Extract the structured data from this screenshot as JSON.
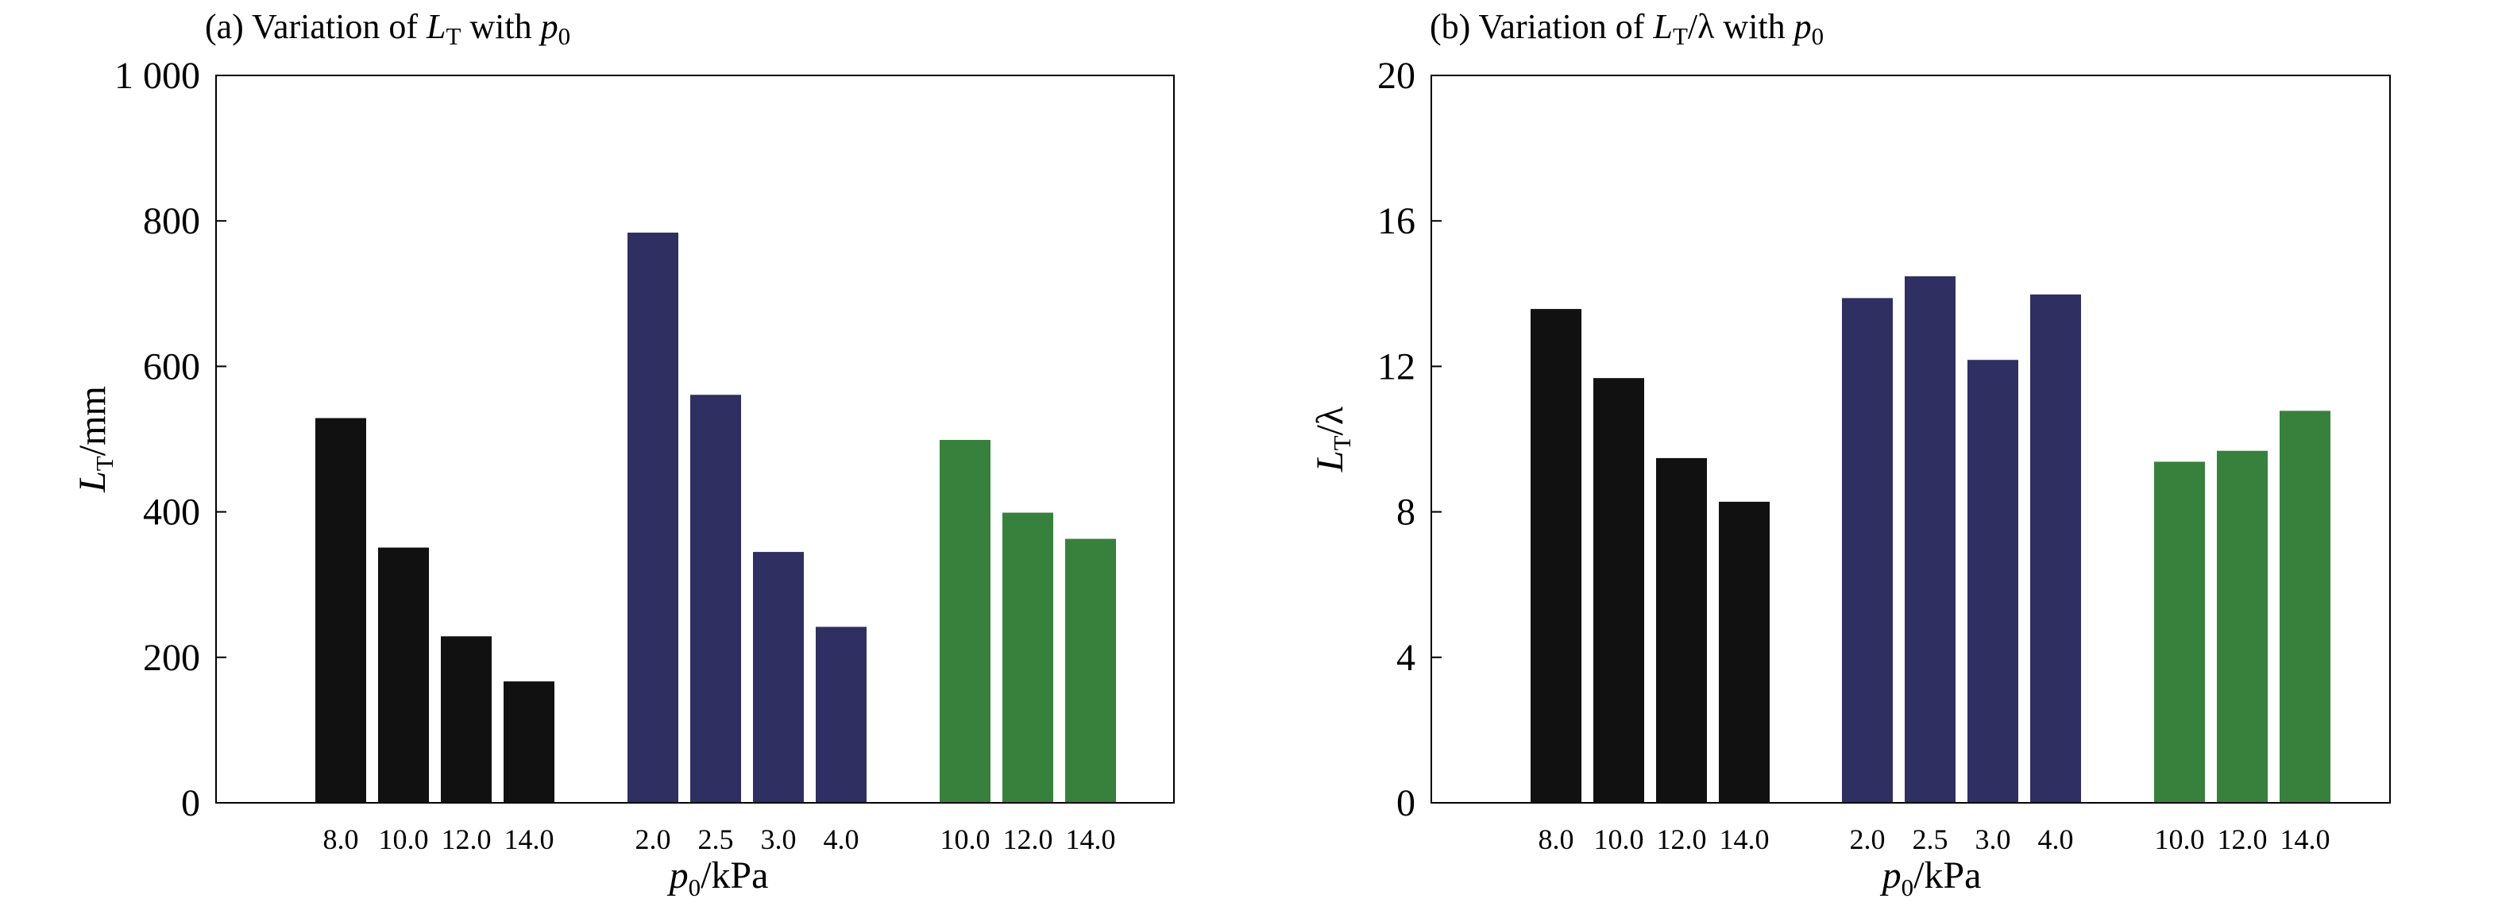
{
  "chart_data": [
    {
      "type": "bar",
      "title": {
        "prefix": "(a) Variation of ",
        "symbol": "L",
        "symbol_sub": "T",
        "middle": " with ",
        "param": "p",
        "param_sub": "0"
      },
      "xlabel": {
        "symbol": "p",
        "symbol_sub": "0",
        "unit": "/kPa"
      },
      "ylabel": {
        "symbol": "L",
        "symbol_sub": "T",
        "unit": "/mm"
      },
      "ylim": [
        0,
        1000
      ],
      "yticks": [
        0,
        200,
        400,
        600,
        800,
        1000
      ],
      "ytick_labels": [
        "0",
        "200",
        "400",
        "600",
        "800",
        "1 000"
      ],
      "grid": false,
      "legend": "none",
      "groups": [
        {
          "color": "#111111",
          "categories": [
            "8.0",
            "10.0",
            "12.0",
            "14.0"
          ],
          "values": [
            530,
            352,
            230,
            168
          ]
        },
        {
          "color": "#2f2f62",
          "categories": [
            "2.0",
            "2.5",
            "3.0",
            "4.0"
          ],
          "values": [
            785,
            562,
            346,
            243
          ]
        },
        {
          "color": "#37813d",
          "categories": [
            "10.0",
            "12.0",
            "14.0"
          ],
          "values": [
            500,
            400,
            364
          ]
        }
      ]
    },
    {
      "type": "bar",
      "title": {
        "prefix": "(b) Variation of ",
        "symbol": "L",
        "symbol_sub": "T",
        "middle": "/λ with ",
        "param": "p",
        "param_sub": "0"
      },
      "xlabel": {
        "symbol": "p",
        "symbol_sub": "0",
        "unit": "/kPa"
      },
      "ylabel": {
        "symbol": "L",
        "symbol_sub": "T",
        "unit": "/λ"
      },
      "ylim": [
        0,
        20
      ],
      "yticks": [
        0,
        4,
        8,
        12,
        16,
        20
      ],
      "ytick_labels": [
        "0",
        "4",
        "8",
        "12",
        "16",
        "20"
      ],
      "grid": false,
      "legend": "none",
      "groups": [
        {
          "color": "#111111",
          "categories": [
            "8.0",
            "10.0",
            "12.0",
            "14.0"
          ],
          "values": [
            13.6,
            11.7,
            9.5,
            8.3
          ]
        },
        {
          "color": "#2f2f62",
          "categories": [
            "2.0",
            "2.5",
            "3.0",
            "4.0"
          ],
          "values": [
            13.9,
            14.5,
            12.2,
            14.0
          ]
        },
        {
          "color": "#37813d",
          "categories": [
            "10.0",
            "12.0",
            "14.0"
          ],
          "values": [
            9.4,
            9.7,
            10.8
          ]
        }
      ]
    }
  ]
}
